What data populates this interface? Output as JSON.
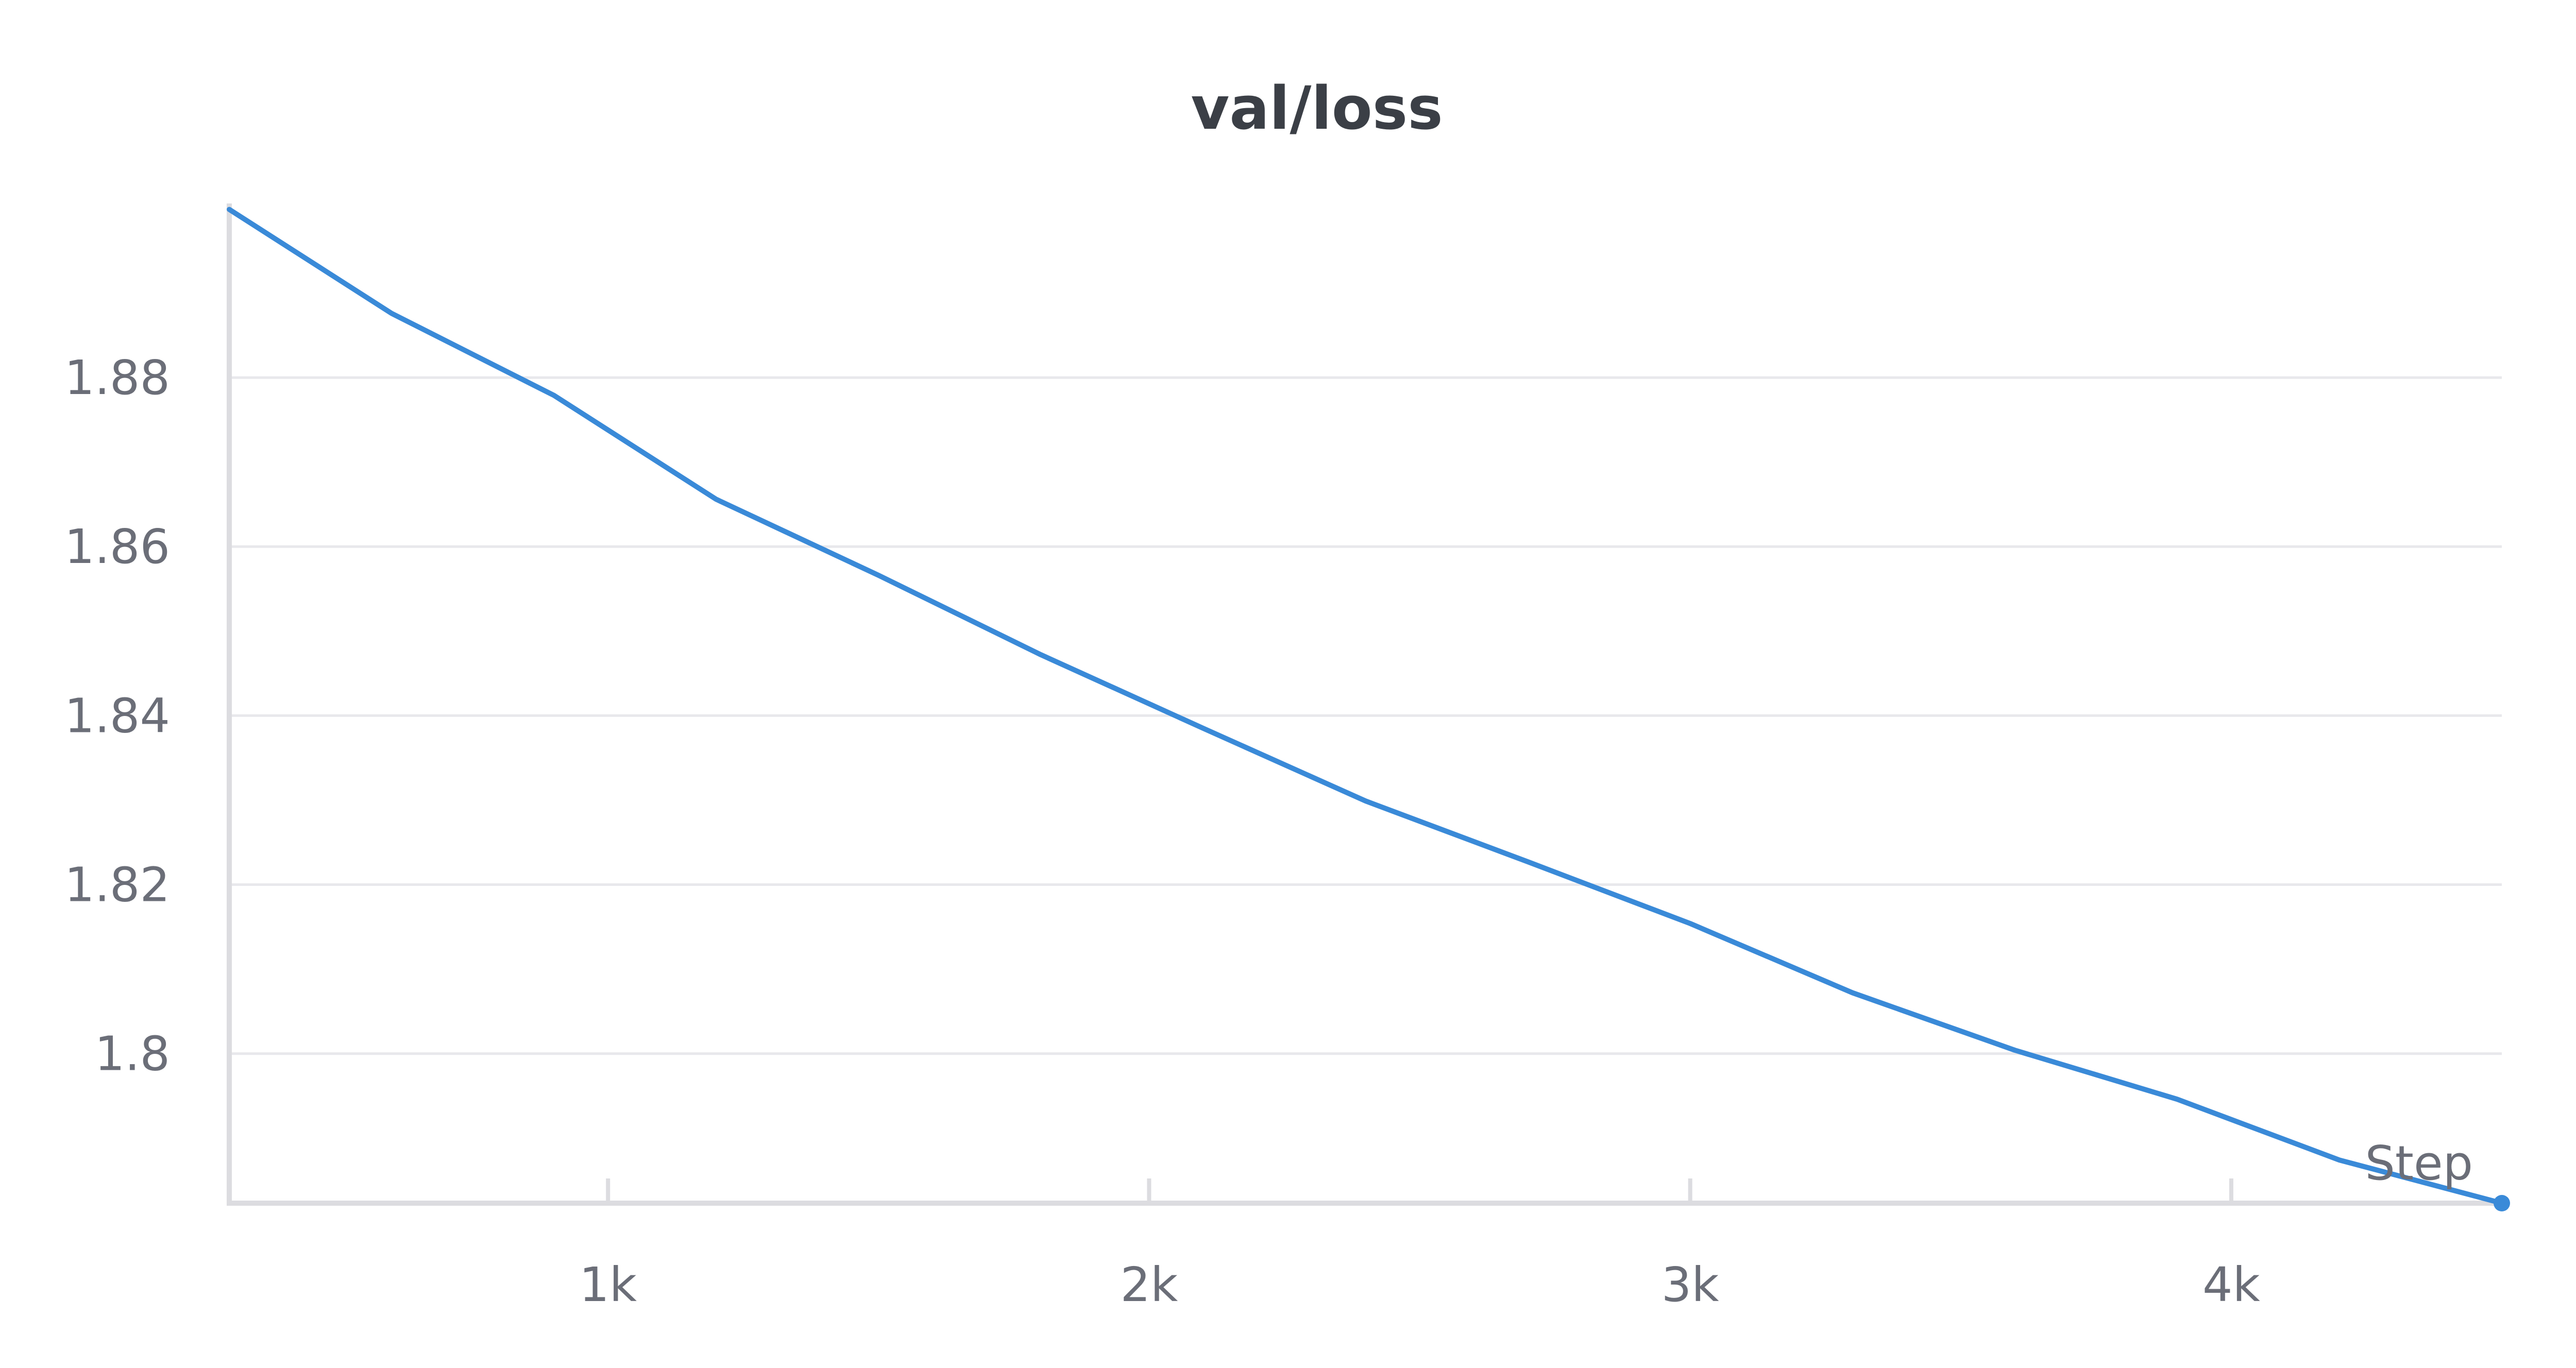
{
  "chart_data": {
    "type": "line",
    "title": "val/loss",
    "xlabel": "Step",
    "ylabel": "",
    "xlim": [
      300,
      4500
    ],
    "ylim": [
      1.7823,
      1.9
    ],
    "x_ticks": [
      1000,
      2000,
      3000,
      4000
    ],
    "x_tick_labels": [
      "1k",
      "2k",
      "3k",
      "4k"
    ],
    "y_ticks": [
      1.8,
      1.82,
      1.84,
      1.86,
      1.88
    ],
    "y_tick_labels": [
      "1.8",
      "1.82",
      "1.84",
      "1.86",
      "1.88"
    ],
    "grid": "horizontal",
    "line_color": "#3a8ad8",
    "series": [
      {
        "x": [
          300,
          600,
          900,
          1200,
          1500,
          1800,
          2100,
          2400,
          2700,
          3000,
          3300,
          3600,
          3900,
          4200,
          4500
        ],
        "y": [
          1.8999,
          1.8876,
          1.8779,
          1.8656,
          1.8566,
          1.8472,
          1.8385,
          1.8299,
          1.8227,
          1.8154,
          1.8072,
          1.8004,
          1.7946,
          1.7874,
          1.7823
        ]
      }
    ]
  }
}
